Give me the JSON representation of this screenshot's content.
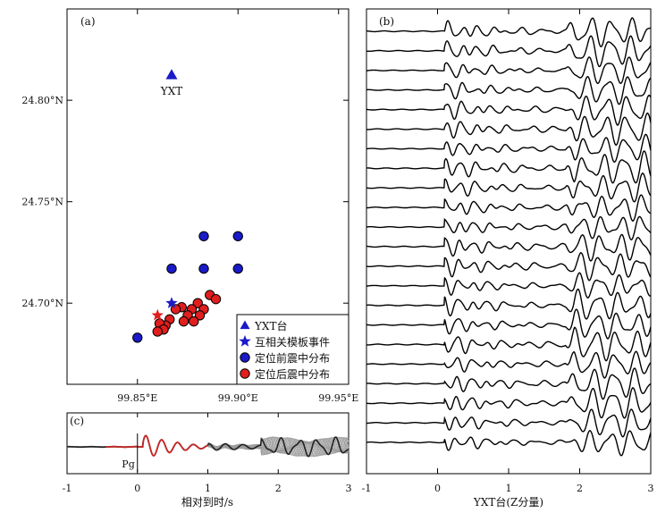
{
  "chart_data": [
    {
      "panel": "(a)",
      "type": "scatter",
      "title": "",
      "xlabel": "",
      "ylabel": "",
      "xlim": [
        99.815,
        99.955
      ],
      "ylim": [
        24.66,
        24.845
      ],
      "x_ticks": [
        99.85,
        99.9,
        99.95
      ],
      "x_tick_labels": [
        "99.85°E",
        "99.90°E",
        "99.95°E"
      ],
      "y_ticks": [
        24.7,
        24.75,
        24.8
      ],
      "y_tick_labels": [
        "24.70°N",
        "24.75°N",
        "24.80°N"
      ],
      "station": {
        "name": "YXT",
        "lon": 99.867,
        "lat": 24.8125,
        "color": "#1a1ac8"
      },
      "legend": {
        "position": "bottom-right",
        "entries": [
          {
            "label": "YXT台",
            "marker": "triangle",
            "color": "#1a1ac8"
          },
          {
            "label": "互相关模板事件",
            "marker": "star",
            "color": "#1a1ac8"
          },
          {
            "label": "定位前震中分布",
            "marker": "circle",
            "color": "#1a1ac8"
          },
          {
            "label": "定位后震中分布",
            "marker": "circle",
            "color": "#e01e1e"
          }
        ]
      },
      "series": [
        {
          "name": "定位前震中分布",
          "color": "#1a1ac8",
          "points": [
            [
              99.883,
              24.733
            ],
            [
              99.9,
              24.733
            ],
            [
              99.867,
              24.717
            ],
            [
              99.883,
              24.717
            ],
            [
              99.9,
              24.717
            ],
            [
              99.85,
              24.683
            ]
          ]
        },
        {
          "name": "定位后震中分布",
          "color": "#e01e1e",
          "points": [
            [
              99.886,
              24.704
            ],
            [
              99.889,
              24.702
            ],
            [
              99.88,
              24.7
            ],
            [
              99.883,
              24.697
            ],
            [
              99.877,
              24.697
            ],
            [
              99.872,
              24.698
            ],
            [
              99.869,
              24.697
            ],
            [
              99.881,
              24.694
            ],
            [
              99.875,
              24.694
            ],
            [
              99.866,
              24.692
            ],
            [
              99.873,
              24.691
            ],
            [
              99.878,
              24.691
            ],
            [
              99.864,
              24.689
            ],
            [
              99.861,
              24.69
            ],
            [
              99.863,
              24.687
            ],
            [
              99.86,
              24.686
            ]
          ]
        },
        {
          "name": "互相关模板事件 (blue)",
          "color": "#1a1ac8",
          "marker": "star",
          "points": [
            [
              99.867,
              24.7
            ]
          ]
        },
        {
          "name": "互相关模板事件 (red)",
          "color": "#e01e1e",
          "marker": "star",
          "points": [
            [
              99.86,
              24.694
            ]
          ]
        }
      ]
    },
    {
      "panel": "(b)",
      "type": "line",
      "title": "",
      "xlabel": "YXT台(Z分量)",
      "ylabel": "",
      "xlim": [
        -1,
        3
      ],
      "x_ticks": [
        -1,
        0,
        1,
        2,
        3
      ],
      "x_tick_labels": [
        "-1",
        "0",
        "1",
        "2",
        "3"
      ],
      "n_traces": 22,
      "p_arrival_s": 0.1,
      "s_arrival_s": 1.8,
      "trace_color": "#000000",
      "line_width": 1.4
    },
    {
      "panel": "(c)",
      "type": "line",
      "title": "",
      "xlabel": "相对到时/s",
      "ylabel": "",
      "xlim": [
        -1,
        3
      ],
      "x_ticks": [
        -1,
        0,
        1,
        2,
        3
      ],
      "x_tick_labels": [
        "-1",
        "0",
        "1",
        "2",
        "3"
      ],
      "marker_label": "Pg",
      "marker_time_s": 0,
      "series": [
        {
          "name": "overlay waveforms",
          "color": "#9a9a9a",
          "count": 20
        },
        {
          "name": "stack",
          "color": "#222222"
        },
        {
          "name": "template window",
          "color": "#c62828",
          "t_start": -0.45,
          "t_end": 1.0
        }
      ]
    }
  ]
}
